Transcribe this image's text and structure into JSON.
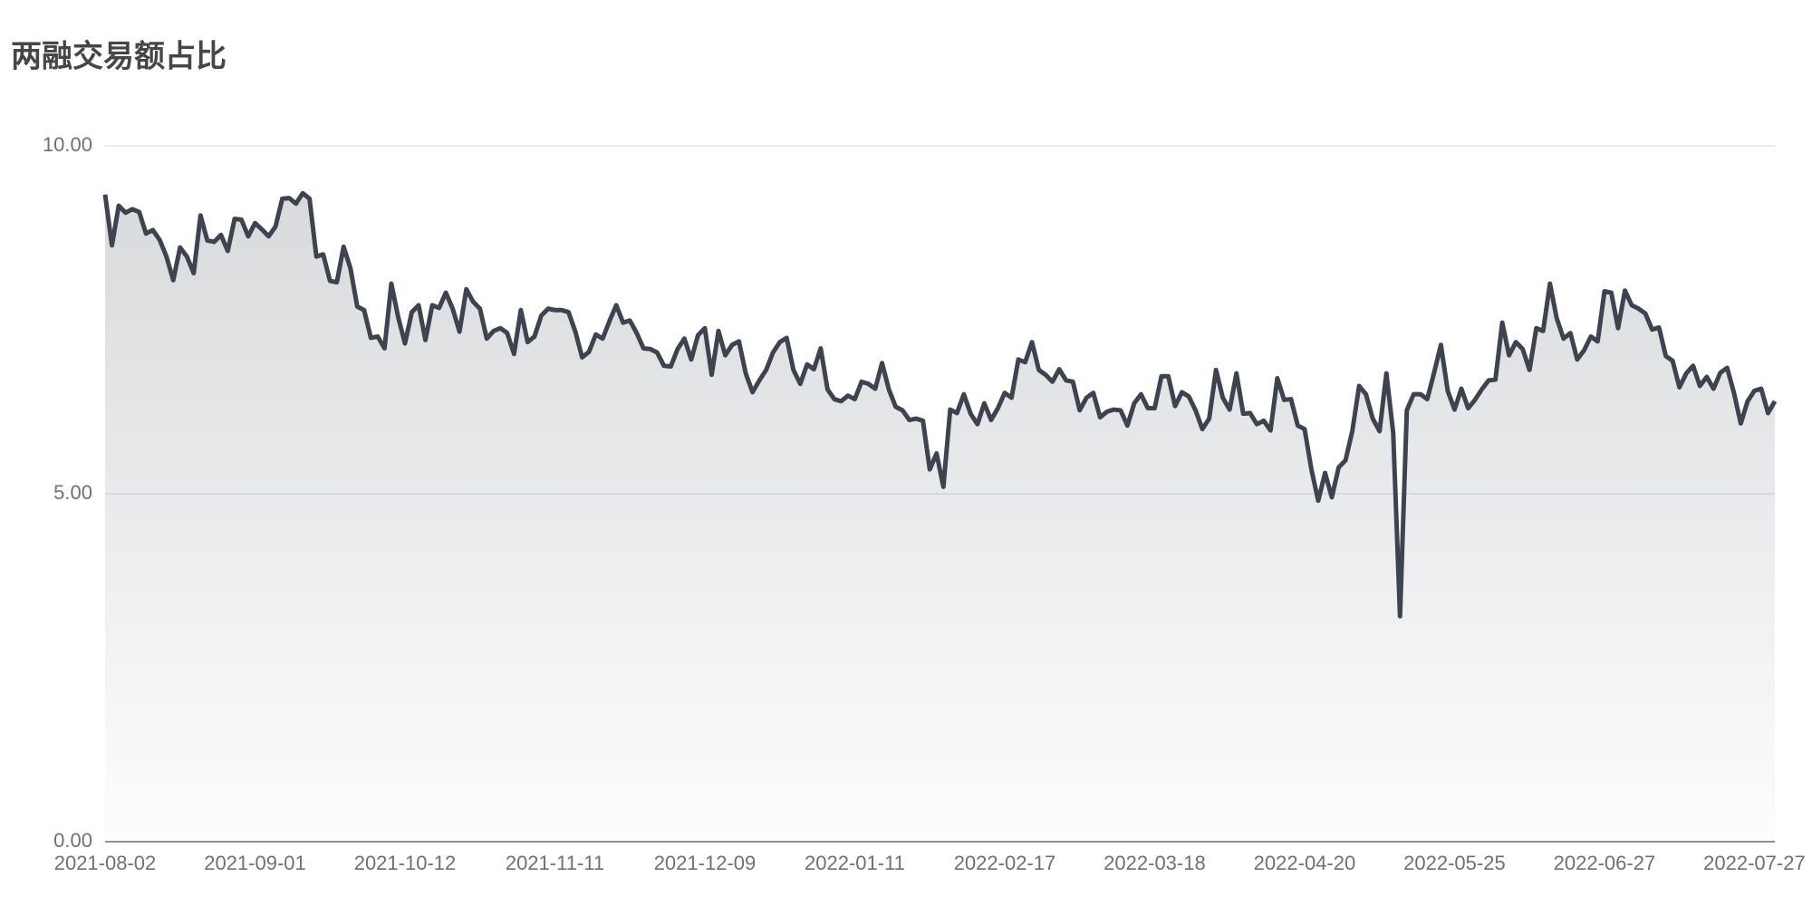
{
  "chart_data": {
    "type": "line",
    "title": "两融交易额占比",
    "categories": [
      "2021-08-02",
      null,
      null,
      null,
      null,
      null,
      null,
      null,
      null,
      null,
      null,
      null,
      null,
      null,
      null,
      null,
      null,
      null,
      null,
      null,
      null,
      null,
      "2021-09-01",
      null,
      null,
      null,
      null,
      null,
      null,
      null,
      null,
      null,
      null,
      null,
      null,
      null,
      null,
      null,
      null,
      null,
      null,
      null,
      null,
      null,
      "2021-10-12",
      null,
      null,
      null,
      null,
      null,
      null,
      null,
      null,
      null,
      null,
      null,
      null,
      null,
      null,
      null,
      null,
      null,
      null,
      null,
      null,
      null,
      "2021-11-11",
      null,
      null,
      null,
      null,
      null,
      null,
      null,
      null,
      null,
      null,
      null,
      null,
      null,
      null,
      null,
      null,
      null,
      null,
      null,
      null,
      null,
      "2021-12-09",
      null,
      null,
      null,
      null,
      null,
      null,
      null,
      null,
      null,
      null,
      null,
      null,
      null,
      null,
      null,
      null,
      null,
      null,
      null,
      null,
      null,
      "2022-01-11",
      null,
      null,
      null,
      null,
      null,
      null,
      null,
      null,
      null,
      null,
      null,
      null,
      null,
      null,
      null,
      null,
      null,
      null,
      null,
      null,
      null,
      "2022-02-17",
      null,
      null,
      null,
      null,
      null,
      null,
      null,
      null,
      null,
      null,
      null,
      null,
      null,
      null,
      null,
      null,
      null,
      null,
      null,
      null,
      null,
      "2022-03-18",
      null,
      null,
      null,
      null,
      null,
      null,
      null,
      null,
      null,
      null,
      null,
      null,
      null,
      null,
      null,
      null,
      null,
      null,
      null,
      null,
      null,
      "2022-04-20",
      null,
      null,
      null,
      null,
      null,
      null,
      null,
      null,
      null,
      null,
      null,
      null,
      null,
      null,
      null,
      null,
      null,
      null,
      null,
      null,
      null,
      "2022-05-25",
      null,
      null,
      null,
      null,
      null,
      null,
      null,
      null,
      null,
      null,
      null,
      null,
      null,
      null,
      null,
      null,
      null,
      null,
      null,
      null,
      null,
      "2022-06-27",
      null,
      null,
      null,
      null,
      null,
      null,
      null,
      null,
      null,
      null,
      null,
      null,
      null,
      null,
      null,
      null,
      null,
      null,
      null,
      null,
      null,
      "2022-07-27",
      null,
      null,
      null
    ],
    "values": [
      9.3,
      8.57,
      9.14,
      9.04,
      9.09,
      9.05,
      8.74,
      8.79,
      8.65,
      8.41,
      8.07,
      8.54,
      8.41,
      8.17,
      9.0,
      8.64,
      8.62,
      8.72,
      8.49,
      8.95,
      8.94,
      8.7,
      8.89,
      8.8,
      8.7,
      8.84,
      9.24,
      9.25,
      9.17,
      9.32,
      9.24,
      8.41,
      8.44,
      8.06,
      8.04,
      8.55,
      8.24,
      7.69,
      7.64,
      7.24,
      7.26,
      7.09,
      8.02,
      7.54,
      7.16,
      7.61,
      7.71,
      7.21,
      7.71,
      7.67,
      7.89,
      7.66,
      7.33,
      7.94,
      7.76,
      7.66,
      7.23,
      7.34,
      7.38,
      7.31,
      7.01,
      7.64,
      7.18,
      7.26,
      7.56,
      7.66,
      7.64,
      7.64,
      7.61,
      7.33,
      6.96,
      7.04,
      7.29,
      7.23,
      7.48,
      7.71,
      7.46,
      7.49,
      7.31,
      7.09,
      7.08,
      7.03,
      6.84,
      6.83,
      7.08,
      7.23,
      6.93,
      7.28,
      7.38,
      6.71,
      7.34,
      6.99,
      7.14,
      7.19,
      6.73,
      6.46,
      6.63,
      6.78,
      7.03,
      7.18,
      7.24,
      6.78,
      6.58,
      6.86,
      6.79,
      7.09,
      6.5,
      6.36,
      6.33,
      6.41,
      6.36,
      6.61,
      6.58,
      6.51,
      6.88,
      6.5,
      6.25,
      6.2,
      6.06,
      6.08,
      6.05,
      5.35,
      5.58,
      5.1,
      6.21,
      6.16,
      6.43,
      6.15,
      6.0,
      6.3,
      6.06,
      6.23,
      6.45,
      6.38,
      6.93,
      6.89,
      7.18,
      6.78,
      6.71,
      6.61,
      6.79,
      6.63,
      6.61,
      6.2,
      6.38,
      6.45,
      6.1,
      6.18,
      6.21,
      6.2,
      5.98,
      6.3,
      6.43,
      6.23,
      6.23,
      6.69,
      6.69,
      6.26,
      6.46,
      6.4,
      6.2,
      5.93,
      6.08,
      6.78,
      6.38,
      6.21,
      6.73,
      6.15,
      6.16,
      6.0,
      6.05,
      5.91,
      6.66,
      6.35,
      6.36,
      5.98,
      5.93,
      5.35,
      4.9,
      5.3,
      4.95,
      5.38,
      5.48,
      5.9,
      6.55,
      6.43,
      6.08,
      5.9,
      6.73,
      5.88,
      3.24,
      6.2,
      6.43,
      6.43,
      6.36,
      6.74,
      7.14,
      6.48,
      6.21,
      6.51,
      6.23,
      6.35,
      6.5,
      6.63,
      6.64,
      7.46,
      6.99,
      7.18,
      7.08,
      6.78,
      7.38,
      7.34,
      8.02,
      7.52,
      7.23,
      7.31,
      6.93,
      7.06,
      7.26,
      7.19,
      7.91,
      7.89,
      7.38,
      7.92,
      7.71,
      7.66,
      7.59,
      7.36,
      7.39,
      6.98,
      6.91,
      6.53,
      6.73,
      6.84,
      6.55,
      6.68,
      6.51,
      6.74,
      6.81,
      6.45,
      6.01,
      6.33,
      6.48,
      6.51,
      6.16,
      6.33
    ],
    "color": "#3d4450",
    "ylim": [
      0,
      10
    ],
    "yticks": [
      {
        "value": 0,
        "label": "0.00"
      },
      {
        "value": 5,
        "label": "5.00"
      },
      {
        "value": 10,
        "label": "10.00"
      }
    ],
    "grid": true
  }
}
